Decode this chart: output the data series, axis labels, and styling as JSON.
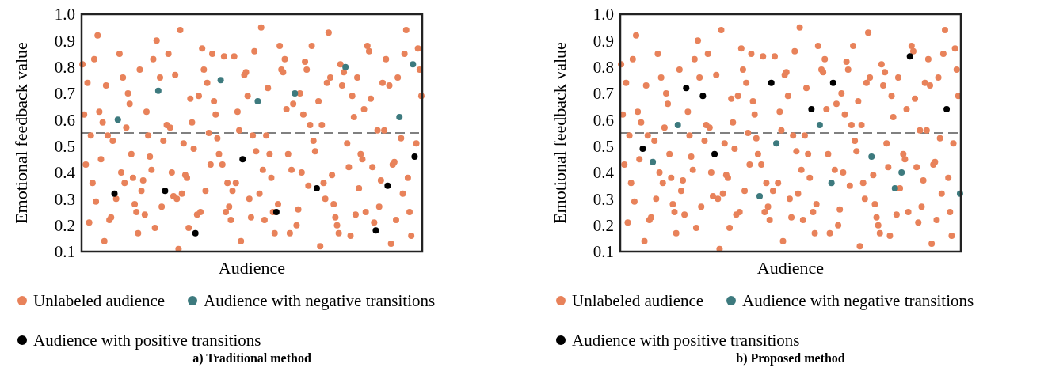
{
  "chart_data": [
    {
      "type": "scatter",
      "title": "a) Traditional method",
      "xlabel": "Audience",
      "ylabel": "Emotional feedback value",
      "categories": [
        null,
        null,
        null,
        null,
        null,
        null,
        null,
        null,
        null,
        null,
        null,
        null,
        null,
        null,
        null,
        null,
        null,
        null,
        null,
        null,
        null,
        null,
        null,
        null,
        null,
        null,
        null,
        null,
        null,
        null,
        null,
        null,
        null,
        null,
        null,
        null,
        null,
        null,
        null,
        null,
        null,
        null,
        null,
        null,
        null,
        null,
        null,
        null,
        null,
        null,
        null,
        null,
        null,
        null,
        null,
        null,
        null,
        null,
        null,
        null,
        null,
        null,
        null,
        null,
        null,
        null,
        null,
        null,
        null,
        null,
        null,
        null,
        null,
        null,
        null,
        null,
        null,
        null,
        null,
        null,
        null,
        null,
        null,
        null,
        null,
        null,
        null,
        null,
        null,
        null,
        null,
        null,
        null,
        null,
        null,
        null,
        null,
        null,
        null,
        null,
        null,
        null,
        null,
        null,
        null,
        null,
        null,
        null,
        null,
        null,
        null,
        null,
        null,
        null,
        null,
        null,
        null,
        null,
        null,
        null,
        null,
        null,
        null,
        null,
        null,
        null,
        null,
        null,
        null,
        null,
        null,
        null,
        null,
        null,
        null,
        null,
        null,
        null,
        null,
        null,
        null,
        null,
        null,
        null,
        null,
        null,
        null,
        null,
        null,
        null,
        null,
        null,
        null,
        null,
        null,
        null,
        null,
        null,
        null,
        null,
        null,
        null,
        null,
        null,
        null,
        null,
        null,
        null,
        null,
        null,
        null,
        null,
        null,
        null,
        null,
        null,
        null,
        null,
        null,
        null,
        null,
        null,
        null,
        null,
        null,
        null,
        null,
        null,
        null,
        null,
        null,
        null,
        null,
        null,
        null,
        null,
        null,
        null,
        null,
        null,
        null,
        null
      ],
      "ylim": [
        0.1,
        1.0
      ],
      "yticks": [
        {
          "value": 0.1,
          "label": "0.1"
        },
        {
          "value": 0.2,
          "label": "0.2"
        },
        {
          "value": 0.3,
          "label": "0.3"
        },
        {
          "value": 0.4,
          "label": "0.4"
        },
        {
          "value": 0.5,
          "label": "0.5"
        },
        {
          "value": 0.6,
          "label": "0.6"
        },
        {
          "value": 0.7,
          "label": "0.7"
        },
        {
          "value": 0.8,
          "label": "0.8"
        },
        {
          "value": 0.9,
          "label": "0.9"
        },
        {
          "value": 1.0,
          "label": "1.0"
        }
      ],
      "tick_labels": "y",
      "grid": false,
      "legend": "bottom",
      "marker": "circle",
      "ref_lines": [
        {
          "axis": "y",
          "value": 0.55,
          "color": "#808080",
          "line_style": "dashed"
        }
      ],
      "series": [
        {
          "name": "Unlabeled audience",
          "color": "#e8825a",
          "values": [
            0.81,
            0.62,
            0.43,
            0.74,
            0.21,
            0.54,
            0.36,
            0.83,
            0.29,
            0.92,
            0.63,
            0.45,
            0.59,
            0.14,
            0.73,
            0.54,
            0.22,
            0.23,
            0.52,
            null,
            0.3,
            null,
            0.85,
            0.4,
            0.76,
            0.36,
            0.57,
            0.7,
            0.66,
            0.47,
            0.38,
            0.28,
            0.25,
            0.17,
            0.79,
            0.33,
            0.37,
            0.24,
            0.63,
            0.54,
            0.46,
            0.41,
            0.83,
            0.19,
            0.9,
            null,
            0.76,
            0.27,
            0.52,
            null,
            0.58,
            0.85,
            0.57,
            0.4,
            0.31,
            0.77,
            0.3,
            0.11,
            0.94,
            0.32,
            0.51,
            0.39,
            0.38,
            0.19,
            0.68,
            0.59,
            0.49,
            null,
            0.24,
            0.69,
            0.25,
            0.87,
            0.79,
            0.33,
            0.74,
            0.55,
            0.43,
            0.85,
            0.67,
            0.62,
            0.53,
            0.47,
            null,
            0.43,
            0.84,
            0.25,
            0.36,
            0.27,
            0.22,
            0.33,
            0.84,
            0.36,
            0.63,
            0.56,
            0.14,
            null,
            0.77,
            0.78,
            0.69,
            0.3,
            0.23,
            0.54,
            0.86,
            0.48,
            null,
            0.32,
            0.95,
            0.41,
            0.22,
            0.54,
            0.72,
            0.47,
            0.38,
            0.25,
            0.17,
            null,
            0.28,
            0.88,
            0.79,
            0.78,
            0.83,
            0.64,
            0.47,
            0.17,
            0.41,
            0.66,
            null,
            0.2,
            0.26,
            0.7,
            0.4,
            0.62,
            0.82,
            0.79,
            0.35,
            0.58,
            0.88,
            0.52,
            0.48,
            null,
            0.67,
            0.12,
            0.58,
            0.36,
            0.3,
            0.74,
            0.93,
            0.76,
            0.39,
            0.28,
            0.23,
            0.2,
            0.17,
            0.81,
            0.73,
            0.78,
            null,
            0.51,
            0.42,
            0.16,
            0.69,
            0.61,
            0.24,
            0.76,
            0.34,
            0.47,
            0.45,
            0.64,
            0.25,
            0.88,
            0.86,
            0.68,
            0.42,
            0.21,
            null,
            0.56,
            0.27,
            0.37,
            0.74,
            0.56,
            0.83,
            null,
            0.73,
            0.13,
            0.43,
            0.44,
            0.22,
            0.76,
            null,
            0.53,
            0.32,
            0.85,
            0.94,
            0.38,
            0.25,
            0.16,
            null,
            null,
            0.51,
            0.87,
            0.79,
            0.69
          ]
        },
        {
          "name": "Audience with negative transitions",
          "color": "#3d7a7e",
          "values": [
            null,
            null,
            null,
            null,
            null,
            null,
            null,
            null,
            null,
            null,
            null,
            null,
            null,
            null,
            null,
            null,
            null,
            null,
            null,
            null,
            null,
            0.6,
            null,
            null,
            null,
            null,
            null,
            null,
            null,
            null,
            null,
            null,
            null,
            null,
            null,
            null,
            null,
            null,
            null,
            null,
            null,
            null,
            null,
            null,
            null,
            0.71,
            null,
            null,
            null,
            null,
            null,
            null,
            null,
            null,
            null,
            null,
            null,
            null,
            null,
            null,
            null,
            null,
            null,
            null,
            null,
            null,
            null,
            null,
            null,
            null,
            null,
            null,
            null,
            null,
            null,
            null,
            null,
            null,
            null,
            null,
            null,
            null,
            0.75,
            null,
            null,
            null,
            null,
            null,
            null,
            null,
            null,
            null,
            null,
            null,
            null,
            null,
            null,
            null,
            null,
            null,
            null,
            null,
            null,
            null,
            0.67,
            null,
            null,
            null,
            null,
            null,
            null,
            null,
            null,
            null,
            null,
            null,
            null,
            null,
            null,
            null,
            null,
            null,
            null,
            null,
            null,
            null,
            0.7,
            null,
            null,
            null,
            null,
            null,
            null,
            null,
            null,
            null,
            null,
            null,
            null,
            null,
            null,
            null,
            null,
            null,
            null,
            null,
            null,
            null,
            null,
            null,
            null,
            null,
            null,
            null,
            null,
            null,
            0.8,
            null,
            null,
            null,
            null,
            null,
            null,
            null,
            null,
            null,
            null,
            null,
            null,
            null,
            null,
            null,
            null,
            null,
            null,
            null,
            null,
            null,
            null,
            null,
            null,
            null,
            null,
            null,
            null,
            null,
            null,
            null,
            0.61,
            null,
            null,
            null,
            null,
            null,
            null,
            null,
            0.81,
            null,
            null,
            null,
            null,
            null
          ]
        },
        {
          "name": "Audience with positive transitions",
          "color": "#000000",
          "values": [
            null,
            null,
            null,
            null,
            null,
            null,
            null,
            null,
            null,
            null,
            null,
            null,
            null,
            null,
            null,
            null,
            null,
            null,
            null,
            0.32,
            null,
            null,
            null,
            null,
            null,
            null,
            null,
            null,
            null,
            null,
            null,
            null,
            null,
            null,
            null,
            null,
            null,
            null,
            null,
            null,
            null,
            null,
            null,
            null,
            null,
            null,
            null,
            null,
            null,
            0.33,
            null,
            null,
            null,
            null,
            null,
            null,
            null,
            null,
            null,
            null,
            null,
            null,
            null,
            null,
            null,
            null,
            null,
            0.17,
            null,
            null,
            null,
            null,
            null,
            null,
            null,
            null,
            null,
            null,
            null,
            null,
            null,
            null,
            null,
            null,
            null,
            null,
            null,
            null,
            null,
            null,
            null,
            null,
            null,
            null,
            null,
            0.45,
            null,
            null,
            null,
            null,
            null,
            null,
            null,
            null,
            null,
            null,
            null,
            null,
            null,
            null,
            null,
            null,
            null,
            null,
            null,
            0.25,
            null,
            null,
            null,
            null,
            null,
            null,
            null,
            null,
            null,
            null,
            null,
            null,
            null,
            null,
            null,
            null,
            null,
            null,
            null,
            null,
            null,
            null,
            null,
            0.34,
            null,
            null,
            null,
            null,
            null,
            null,
            null,
            null,
            null,
            null,
            null,
            null,
            null,
            null,
            null,
            null,
            null,
            null,
            null,
            null,
            null,
            null,
            null,
            null,
            null,
            null,
            null,
            null,
            null,
            null,
            null,
            null,
            null,
            null,
            0.18,
            null,
            null,
            null,
            null,
            null,
            null,
            0.35,
            null,
            null,
            null,
            null,
            null,
            null,
            null,
            null,
            null,
            null,
            null,
            null,
            null,
            null,
            null,
            0.46,
            null,
            null,
            null,
            null
          ]
        }
      ]
    },
    {
      "type": "scatter",
      "title": "b) Proposed method",
      "xlabel": "Audience",
      "ylabel": "Emotional feedback value",
      "categories": [
        null,
        null,
        null,
        null,
        null,
        null,
        null,
        null,
        null,
        null,
        null,
        null,
        null,
        null,
        null,
        null,
        null,
        null,
        null,
        null,
        null,
        null,
        null,
        null,
        null,
        null,
        null,
        null,
        null,
        null,
        null,
        null,
        null,
        null,
        null,
        null,
        null,
        null,
        null,
        null,
        null,
        null,
        null,
        null,
        null,
        null,
        null,
        null,
        null,
        null,
        null,
        null,
        null,
        null,
        null,
        null,
        null,
        null,
        null,
        null,
        null,
        null,
        null,
        null,
        null,
        null,
        null,
        null,
        null,
        null,
        null,
        null,
        null,
        null,
        null,
        null,
        null,
        null,
        null,
        null,
        null,
        null,
        null,
        null,
        null,
        null,
        null,
        null,
        null,
        null,
        null,
        null,
        null,
        null,
        null,
        null,
        null,
        null,
        null,
        null,
        null,
        null,
        null,
        null,
        null,
        null,
        null,
        null,
        null,
        null,
        null,
        null,
        null,
        null,
        null,
        null,
        null,
        null,
        null,
        null,
        null,
        null,
        null,
        null,
        null,
        null,
        null,
        null,
        null,
        null,
        null,
        null,
        null,
        null,
        null,
        null,
        null,
        null,
        null,
        null,
        null,
        null,
        null,
        null,
        null,
        null,
        null,
        null,
        null,
        null,
        null,
        null,
        null,
        null,
        null,
        null,
        null,
        null,
        null,
        null,
        null,
        null,
        null,
        null,
        null,
        null,
        null,
        null,
        null,
        null,
        null,
        null,
        null,
        null,
        null,
        null,
        null,
        null,
        null,
        null,
        null,
        null,
        null,
        null,
        null,
        null,
        null,
        null,
        null,
        null,
        null,
        null,
        null,
        null,
        null,
        null,
        null,
        null,
        null,
        null,
        null,
        null,
        null,
        null
      ],
      "ylim": [
        0.1,
        1.0
      ],
      "yticks": [
        {
          "value": 0.1,
          "label": "0.1"
        },
        {
          "value": 0.2,
          "label": "0.2"
        },
        {
          "value": 0.3,
          "label": "0.3"
        },
        {
          "value": 0.4,
          "label": "0.4"
        },
        {
          "value": 0.5,
          "label": "0.5"
        },
        {
          "value": 0.6,
          "label": "0.6"
        },
        {
          "value": 0.7,
          "label": "0.7"
        },
        {
          "value": 0.8,
          "label": "0.8"
        },
        {
          "value": 0.9,
          "label": "0.9"
        },
        {
          "value": 1.0,
          "label": "1.0"
        }
      ],
      "tick_labels": "y",
      "grid": false,
      "legend": "bottom",
      "marker": "circle",
      "ref_lines": [
        {
          "axis": "y",
          "value": 0.55,
          "color": "#808080",
          "line_style": "dashed"
        }
      ],
      "series": [
        {
          "name": "Unlabeled audience",
          "color": "#e8825a",
          "values": [
            0.81,
            0.62,
            0.43,
            0.74,
            0.21,
            0.54,
            0.36,
            0.83,
            0.29,
            0.92,
            0.63,
            0.45,
            0.59,
            null,
            0.14,
            0.73,
            0.54,
            0.22,
            0.23,
            null,
            0.52,
            0.3,
            0.85,
            0.4,
            0.76,
            0.36,
            0.57,
            0.7,
            0.66,
            0.47,
            0.38,
            0.28,
            0.25,
            0.17,
            null,
            0.79,
            0.33,
            0.37,
            0.24,
            null,
            0.63,
            0.54,
            0.46,
            0.41,
            0.83,
            0.19,
            0.9,
            0.76,
            0.27,
            null,
            0.52,
            0.58,
            0.85,
            0.57,
            0.4,
            0.31,
            null,
            0.77,
            0.3,
            0.11,
            0.94,
            0.32,
            0.51,
            0.39,
            0.38,
            0.19,
            0.68,
            0.59,
            0.49,
            0.24,
            0.69,
            0.25,
            0.87,
            0.79,
            0.33,
            0.74,
            0.55,
            0.43,
            0.85,
            0.67,
            0.62,
            0.53,
            0.47,
            null,
            0.43,
            0.84,
            0.25,
            0.36,
            0.27,
            0.22,
            null,
            0.33,
            0.84,
            null,
            0.36,
            0.63,
            0.56,
            0.14,
            0.77,
            0.78,
            0.69,
            0.3,
            0.23,
            0.54,
            0.86,
            0.48,
            0.32,
            0.95,
            0.41,
            0.22,
            0.54,
            0.72,
            0.47,
            0.38,
            null,
            0.25,
            0.17,
            0.28,
            0.88,
            null,
            0.79,
            0.78,
            0.83,
            0.64,
            0.47,
            0.17,
            null,
            null,
            0.41,
            0.66,
            0.2,
            0.26,
            0.7,
            0.4,
            0.62,
            0.82,
            0.79,
            0.35,
            0.58,
            0.88,
            0.52,
            0.48,
            0.67,
            0.12,
            0.58,
            0.36,
            0.3,
            0.74,
            0.93,
            0.76,
            null,
            0.39,
            0.28,
            0.23,
            0.2,
            0.17,
            0.81,
            0.73,
            0.78,
            0.51,
            0.42,
            0.16,
            0.69,
            0.61,
            null,
            0.24,
            0.76,
            0.34,
            null,
            0.47,
            0.45,
            0.64,
            0.25,
            null,
            0.88,
            0.86,
            0.68,
            0.42,
            0.21,
            0.56,
            0.27,
            0.37,
            0.74,
            0.56,
            0.83,
            0.73,
            0.13,
            0.43,
            0.44,
            0.22,
            0.76,
            0.53,
            0.32,
            0.85,
            0.94,
            null,
            0.38,
            0.25,
            0.16,
            0.51,
            0.87,
            0.79,
            0.69,
            null
          ]
        },
        {
          "name": "Audience with negative transitions",
          "color": "#3d7a7e",
          "values": [
            null,
            null,
            null,
            null,
            null,
            null,
            null,
            null,
            null,
            null,
            null,
            null,
            null,
            null,
            null,
            null,
            null,
            null,
            null,
            0.44,
            null,
            null,
            null,
            null,
            null,
            null,
            null,
            null,
            null,
            null,
            null,
            null,
            null,
            null,
            0.58,
            null,
            null,
            null,
            null,
            null,
            null,
            null,
            null,
            null,
            null,
            null,
            null,
            null,
            null,
            null,
            null,
            null,
            null,
            null,
            null,
            null,
            null,
            null,
            null,
            null,
            null,
            null,
            null,
            null,
            null,
            null,
            null,
            null,
            null,
            null,
            null,
            null,
            null,
            null,
            null,
            null,
            null,
            null,
            null,
            null,
            null,
            null,
            null,
            0.31,
            null,
            null,
            null,
            null,
            null,
            null,
            null,
            null,
            null,
            0.51,
            null,
            null,
            null,
            null,
            null,
            null,
            null,
            null,
            null,
            null,
            null,
            null,
            null,
            null,
            null,
            null,
            null,
            null,
            null,
            null,
            null,
            null,
            null,
            null,
            null,
            0.58,
            null,
            null,
            null,
            null,
            null,
            null,
            0.36,
            null,
            null,
            null,
            null,
            null,
            null,
            null,
            null,
            null,
            null,
            null,
            null,
            null,
            null,
            null,
            null,
            null,
            null,
            null,
            null,
            null,
            null,
            null,
            0.46,
            null,
            null,
            null,
            null,
            null,
            null,
            null,
            null,
            null,
            null,
            null,
            null,
            null,
            0.34,
            null,
            null,
            null,
            0.4,
            null,
            null,
            null,
            null,
            null,
            null,
            null,
            null,
            null,
            null,
            null,
            null,
            null,
            null,
            null,
            null,
            null,
            null,
            null,
            null,
            null,
            null,
            null,
            null,
            null,
            null,
            null,
            null,
            null,
            null,
            null,
            null,
            null,
            null,
            0.32
          ]
        },
        {
          "name": "Audience with positive transitions",
          "color": "#000000",
          "values": [
            null,
            null,
            null,
            null,
            null,
            null,
            null,
            null,
            null,
            null,
            null,
            null,
            null,
            0.49,
            null,
            null,
            null,
            null,
            null,
            null,
            null,
            null,
            null,
            null,
            null,
            null,
            null,
            null,
            null,
            null,
            null,
            null,
            null,
            null,
            null,
            null,
            null,
            null,
            null,
            0.72,
            null,
            null,
            null,
            null,
            null,
            null,
            null,
            null,
            null,
            0.69,
            null,
            null,
            null,
            null,
            null,
            null,
            0.47,
            null,
            null,
            null,
            null,
            null,
            null,
            null,
            null,
            null,
            null,
            null,
            null,
            null,
            null,
            null,
            null,
            null,
            null,
            null,
            null,
            null,
            null,
            null,
            null,
            null,
            null,
            null,
            null,
            null,
            null,
            null,
            null,
            null,
            0.74,
            null,
            null,
            null,
            null,
            null,
            null,
            null,
            null,
            null,
            null,
            null,
            null,
            null,
            null,
            null,
            null,
            null,
            null,
            null,
            null,
            null,
            null,
            null,
            0.64,
            null,
            null,
            null,
            null,
            null,
            null,
            null,
            null,
            null,
            null,
            null,
            null,
            0.74,
            null,
            null,
            null,
            null,
            null,
            null,
            null,
            null,
            null,
            null,
            null,
            null,
            null,
            null,
            null,
            null,
            null,
            null,
            null,
            null,
            null,
            null,
            null,
            null,
            null,
            null,
            null,
            null,
            null,
            null,
            null,
            null,
            null,
            null,
            null,
            null,
            null,
            null,
            null,
            null,
            null,
            null,
            null,
            null,
            null,
            0.84,
            null,
            null,
            null,
            null,
            null,
            null,
            null,
            null,
            null,
            null,
            null,
            null,
            null,
            null,
            null,
            null,
            null,
            null,
            null,
            null,
            null,
            0.64,
            null,
            null,
            null,
            null,
            null,
            null,
            null,
            null
          ]
        }
      ]
    }
  ]
}
